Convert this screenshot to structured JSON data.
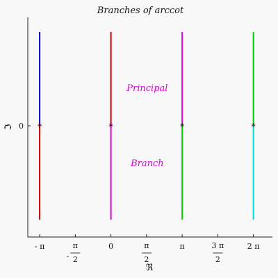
{
  "chart_data": {
    "type": "line",
    "title": "Branches of arccot",
    "xlabel": "ℜ",
    "ylabel": "ℑ",
    "xlim": [
      -3.6652,
      7.1209
    ],
    "ylim": [
      -1.0,
      1.0
    ],
    "x_ticks": [
      {
        "value": -3.14159,
        "label": "- π"
      },
      {
        "value": -1.5708,
        "num": "π",
        "den": "2",
        "sign": "-"
      },
      {
        "value": 0,
        "label": "0"
      },
      {
        "value": 1.5708,
        "num": "π",
        "den": "2",
        "sign": ""
      },
      {
        "value": 3.14159,
        "label": "π"
      },
      {
        "value": 4.71239,
        "num": "3 π",
        "den": "2",
        "sign": ""
      },
      {
        "value": 6.28319,
        "label": "2 π"
      }
    ],
    "y_ticks": [
      {
        "value": 0,
        "label": "0"
      }
    ],
    "series": [
      {
        "x": -3.14159,
        "y": [
          0,
          1
        ],
        "color": "#0000cc"
      },
      {
        "x": -3.14159,
        "y": [
          -1,
          0
        ],
        "color": "#cc0000"
      },
      {
        "x": 0,
        "y": [
          0,
          1
        ],
        "color": "#cc0000"
      },
      {
        "x": 0,
        "y": [
          -1,
          0
        ],
        "color": "#dd00dd"
      },
      {
        "x": 3.14159,
        "y": [
          0,
          1
        ],
        "color": "#dd00dd"
      },
      {
        "x": 3.14159,
        "y": [
          -1,
          0
        ],
        "color": "#00cc00"
      },
      {
        "x": 6.28319,
        "y": [
          0,
          1
        ],
        "color": "#00cc00"
      },
      {
        "x": 6.28319,
        "y": [
          -1,
          0
        ],
        "color": "#00dddd"
      }
    ],
    "markers": [
      {
        "x": -3.14159,
        "y": 0,
        "symbol": "*"
      },
      {
        "x": 0,
        "y": 0,
        "symbol": "*"
      },
      {
        "x": 3.14159,
        "y": 0,
        "symbol": "*"
      },
      {
        "x": 6.28319,
        "y": 0,
        "symbol": "*"
      }
    ],
    "annotations": [
      {
        "text": "Principal",
        "x": 1.5708,
        "y": 0.4,
        "color": "#dd00dd"
      },
      {
        "text": "Branch",
        "x": 1.5708,
        "y": -0.4,
        "color": "#dd00dd"
      }
    ],
    "grid": false,
    "legend": "none"
  }
}
